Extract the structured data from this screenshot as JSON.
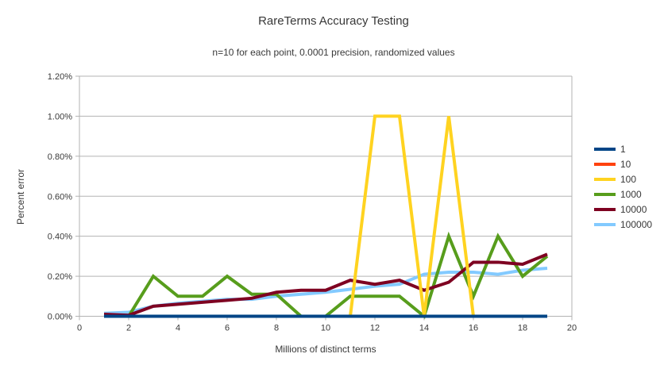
{
  "chart_data": {
    "type": "line",
    "title": "RareTerms Accuracy Testing",
    "subtitle": "n=10 for each point, 0.0001 precision, randomized values",
    "xlabel": "Millions of distinct terms",
    "ylabel": "Percent error",
    "xlim": [
      0,
      20
    ],
    "ylim_percent": [
      0.0,
      1.2
    ],
    "grid": "horizontal",
    "legend_position": "right",
    "axis_color": "#b3b3b3",
    "x_tick_labels": [
      "0",
      "2",
      "4",
      "6",
      "8",
      "10",
      "12",
      "14",
      "16",
      "18",
      "20"
    ],
    "x_tick_values": [
      0,
      2,
      4,
      6,
      8,
      10,
      12,
      14,
      16,
      18,
      20
    ],
    "y_tick_labels": [
      "0.00%",
      "0.20%",
      "0.40%",
      "0.60%",
      "0.80%",
      "1.00%",
      "1.20%"
    ],
    "y_tick_values": [
      0.0,
      0.2,
      0.4,
      0.6,
      0.8,
      1.0,
      1.2
    ],
    "x": [
      1,
      2,
      3,
      4,
      5,
      6,
      7,
      8,
      9,
      10,
      11,
      12,
      13,
      14,
      15,
      16,
      17,
      18,
      19
    ],
    "series": [
      {
        "name": "1",
        "color": "#004586",
        "values": [
          0,
          0,
          0,
          0,
          0,
          0,
          0,
          0,
          0,
          0,
          0,
          0,
          0,
          0,
          0,
          0,
          0,
          0,
          0
        ]
      },
      {
        "name": "10",
        "color": "#FF420E",
        "values": [
          0,
          0,
          0,
          0,
          0,
          0,
          0,
          0,
          0,
          0,
          0,
          0,
          0,
          0,
          0,
          0,
          0,
          0,
          0
        ]
      },
      {
        "name": "100",
        "color": "#FFD320",
        "values": [
          0,
          0,
          0,
          0,
          0,
          0,
          0,
          0,
          0,
          0,
          0,
          1.0,
          1.0,
          0,
          1.0,
          0,
          0,
          0,
          0
        ]
      },
      {
        "name": "1000",
        "color": "#579D1C",
        "values": [
          0,
          0,
          0.2,
          0.1,
          0.1,
          0.2,
          0.11,
          0.11,
          0,
          0,
          0.1,
          0.1,
          0.1,
          0,
          0.4,
          0.1,
          0.4,
          0.2,
          0.3
        ]
      },
      {
        "name": "10000",
        "color": "#7E0021",
        "values": [
          0.01,
          0.005,
          0.05,
          0.06,
          0.07,
          0.08,
          0.09,
          0.12,
          0.13,
          0.13,
          0.18,
          0.16,
          0.18,
          0.13,
          0.17,
          0.27,
          0.27,
          0.26,
          0.31
        ]
      },
      {
        "name": "100000",
        "color": "#83CAFF",
        "values": [
          0.015,
          0.02,
          0.05,
          0.065,
          0.075,
          0.085,
          0.085,
          0.1,
          0.11,
          0.12,
          0.135,
          0.15,
          0.16,
          0.21,
          0.22,
          0.22,
          0.21,
          0.23,
          0.24
        ]
      }
    ],
    "draw_order": [
      "10",
      "100000",
      "1000",
      "10000",
      "100",
      "1"
    ]
  }
}
